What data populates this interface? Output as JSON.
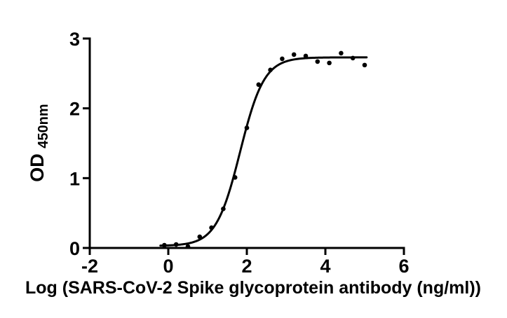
{
  "figure": {
    "background_color": "#ffffff",
    "ink_color": "#000000"
  },
  "chart_data": {
    "type": "scatter",
    "title": "",
    "xlabel": "Log (SARS-CoV-2 Spike glycoprotein antibody (ng/ml))",
    "ylabel": "OD",
    "ylabel_sub": "450nm",
    "xlim": [
      -2,
      6
    ],
    "ylim": [
      0,
      3
    ],
    "grid": false,
    "legend": "none",
    "x_ticks": {
      "values": [
        -2,
        0,
        2,
        4,
        6
      ],
      "labels": [
        "-2",
        "0",
        "2",
        "4",
        "6"
      ]
    },
    "y_ticks": {
      "values": [
        0,
        1,
        2,
        3
      ],
      "labels": [
        "0",
        "1",
        "2",
        "3"
      ]
    },
    "series": [
      {
        "name": "OD450 measurements",
        "type": "scatter",
        "marker": "circle",
        "marker_radius": 3.3,
        "color": "#000000",
        "x": [
          -0.1,
          0.2,
          0.5,
          0.8,
          1.1,
          1.4,
          1.7,
          2.0,
          2.3,
          2.6,
          2.9,
          3.2,
          3.5,
          3.8,
          4.1,
          4.4,
          4.7,
          5.0
        ],
        "y": [
          0.04,
          0.05,
          0.02,
          0.16,
          0.29,
          0.56,
          1.01,
          1.72,
          2.34,
          2.55,
          2.71,
          2.77,
          2.75,
          2.67,
          2.65,
          2.79,
          2.72,
          2.62
        ]
      },
      {
        "name": "sigmoidal 4PL fit",
        "type": "line",
        "color": "#000000",
        "stroke_width": 3,
        "fit": {
          "model": "four-parameter-logistic",
          "bottom": 0.03,
          "top": 2.73,
          "logEC50": 1.83,
          "hillslope": 1.42
        },
        "x_range": [
          -0.2,
          5.05
        ]
      }
    ]
  }
}
